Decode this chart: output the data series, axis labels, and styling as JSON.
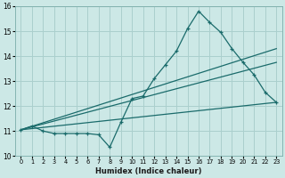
{
  "xlabel": "Humidex (Indice chaleur)",
  "xlim": [
    -0.5,
    23.5
  ],
  "ylim": [
    10,
    16
  ],
  "yticks": [
    10,
    11,
    12,
    13,
    14,
    15,
    16
  ],
  "background_color": "#cce8e6",
  "grid_color": "#aacfcd",
  "line_color": "#1a6b6b",
  "series1_x": [
    0,
    1,
    2,
    3,
    4,
    5,
    6,
    7,
    8,
    9,
    10,
    11,
    12,
    13,
    14,
    15,
    16,
    17,
    18,
    19,
    20,
    21,
    22,
    23
  ],
  "series1_y": [
    11.05,
    11.2,
    11.0,
    10.9,
    10.9,
    10.9,
    10.9,
    10.85,
    10.35,
    11.35,
    12.3,
    12.4,
    13.1,
    13.65,
    14.2,
    15.1,
    15.8,
    15.35,
    14.95,
    14.3,
    13.75,
    13.25,
    12.55,
    12.15
  ],
  "series2_x": [
    0,
    23
  ],
  "series2_y": [
    11.05,
    12.15
  ],
  "series3_x": [
    0,
    23
  ],
  "series3_y": [
    11.05,
    13.75
  ],
  "series4_x": [
    0,
    23
  ],
  "series4_y": [
    11.05,
    14.3
  ]
}
